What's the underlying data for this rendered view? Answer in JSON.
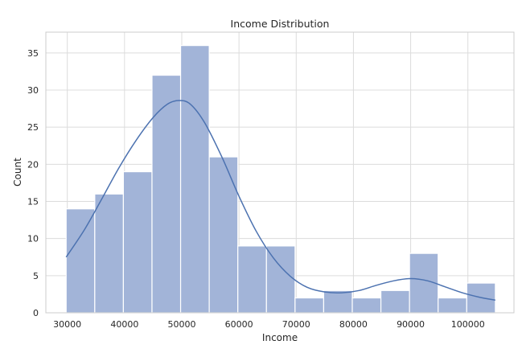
{
  "chart_data": {
    "type": "bar",
    "subtype": "histogram",
    "title": "Income Distribution",
    "xlabel": "Income",
    "ylabel": "Count",
    "xlim": [
      26250,
      108050
    ],
    "ylim": [
      0,
      37.8
    ],
    "x_ticks": [
      30000,
      40000,
      50000,
      60000,
      70000,
      80000,
      90000,
      100000
    ],
    "y_ticks": [
      0,
      5,
      10,
      15,
      20,
      25,
      30,
      35
    ],
    "grid": true,
    "legend": false,
    "colors": {
      "bar_fill": "#a2b4d8",
      "kde_line": "#4c72b0"
    },
    "bins": [
      {
        "x0": 29800,
        "x1": 34800,
        "count": 14
      },
      {
        "x0": 34800,
        "x1": 39800,
        "count": 16
      },
      {
        "x0": 39800,
        "x1": 44800,
        "count": 19
      },
      {
        "x0": 44800,
        "x1": 49800,
        "count": 32
      },
      {
        "x0": 49800,
        "x1": 54800,
        "count": 36
      },
      {
        "x0": 54800,
        "x1": 59800,
        "count": 21
      },
      {
        "x0": 59800,
        "x1": 64800,
        "count": 9
      },
      {
        "x0": 64800,
        "x1": 69800,
        "count": 9
      },
      {
        "x0": 69800,
        "x1": 74800,
        "count": 2
      },
      {
        "x0": 74800,
        "x1": 79800,
        "count": 3
      },
      {
        "x0": 79800,
        "x1": 84800,
        "count": 2
      },
      {
        "x0": 84800,
        "x1": 89800,
        "count": 3
      },
      {
        "x0": 89800,
        "x1": 94800,
        "count": 8
      },
      {
        "x0": 94800,
        "x1": 99800,
        "count": 2
      },
      {
        "x0": 99800,
        "x1": 104800,
        "count": 4
      }
    ],
    "kde": [
      {
        "x": 29800,
        "y": 7.5
      },
      {
        "x": 33000,
        "y": 11.2
      },
      {
        "x": 36000,
        "y": 15.3
      },
      {
        "x": 39000,
        "y": 19.5
      },
      {
        "x": 42000,
        "y": 23.2
      },
      {
        "x": 45000,
        "y": 26.3
      },
      {
        "x": 47500,
        "y": 28.1
      },
      {
        "x": 49500,
        "y": 28.6
      },
      {
        "x": 51500,
        "y": 28.1
      },
      {
        "x": 54000,
        "y": 25.6
      },
      {
        "x": 57000,
        "y": 21.0
      },
      {
        "x": 60000,
        "y": 15.7
      },
      {
        "x": 63000,
        "y": 11.0
      },
      {
        "x": 66000,
        "y": 7.4
      },
      {
        "x": 69000,
        "y": 4.9
      },
      {
        "x": 72000,
        "y": 3.4
      },
      {
        "x": 75000,
        "y": 2.8
      },
      {
        "x": 78000,
        "y": 2.7
      },
      {
        "x": 81000,
        "y": 3.0
      },
      {
        "x": 84000,
        "y": 3.7
      },
      {
        "x": 87000,
        "y": 4.3
      },
      {
        "x": 90000,
        "y": 4.6
      },
      {
        "x": 93000,
        "y": 4.3
      },
      {
        "x": 96000,
        "y": 3.5
      },
      {
        "x": 99000,
        "y": 2.7
      },
      {
        "x": 102000,
        "y": 2.1
      },
      {
        "x": 104800,
        "y": 1.7
      }
    ]
  }
}
